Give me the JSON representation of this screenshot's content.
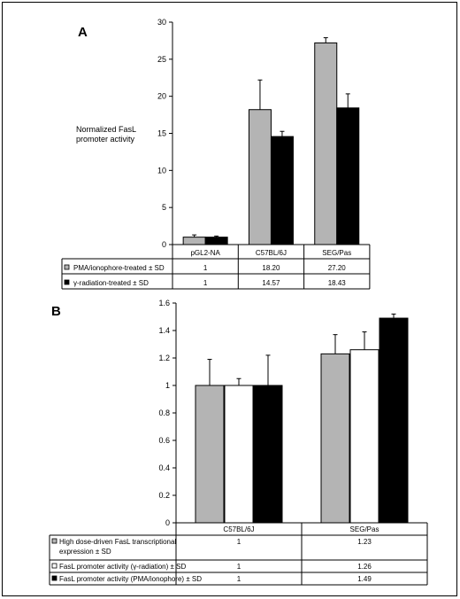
{
  "chart_data": [
    {
      "panel": "A",
      "type": "bar",
      "ylabel": [
        "Normalized FasL",
        "promoter activity"
      ],
      "categories": [
        "pGL2-NA",
        "C57BL/6J",
        "SEG/Pas"
      ],
      "ylim": [
        0,
        30
      ],
      "yticks": [
        0,
        5,
        10,
        15,
        20,
        25,
        30
      ],
      "series": [
        {
          "name": "PMA/ionophore-treated ± SD",
          "color": "#b4b4b4",
          "values": [
            1,
            18.2,
            27.2
          ],
          "errors": [
            0.3,
            4.0,
            0.7
          ],
          "labels": [
            "1",
            "18.20",
            "27.20"
          ]
        },
        {
          "name": "γ-radiation-treated ± SD",
          "color": "#000000",
          "values": [
            1,
            14.57,
            18.43
          ],
          "errors": [
            0.15,
            0.7,
            1.9
          ],
          "labels": [
            "1",
            "14.57",
            "18.43"
          ]
        }
      ]
    },
    {
      "panel": "B",
      "type": "bar",
      "categories": [
        "C57BL/6J",
        "SEG/Pas"
      ],
      "ylim": [
        0,
        1.6
      ],
      "yticks": [
        0,
        0.2,
        0.4,
        0.6,
        0.8,
        1,
        1.2,
        1.4,
        1.6
      ],
      "series": [
        {
          "name": [
            "High dose-driven FasL transcriptional",
            "expression ± SD"
          ],
          "color": "#b4b4b4",
          "values": [
            1,
            1.23
          ],
          "errors": [
            0.19,
            0.14
          ],
          "labels": [
            "1",
            "1.23"
          ]
        },
        {
          "name": "FasL promoter activity (γ-radiation) ± SD",
          "color": "#ffffff",
          "values": [
            1,
            1.26
          ],
          "errors": [
            0.05,
            0.13
          ],
          "labels": [
            "1",
            "1.26"
          ]
        },
        {
          "name": "FasL promoter activity (PMA/ionophore) ± SD",
          "color": "#000000",
          "values": [
            1,
            1.49
          ],
          "errors": [
            0.22,
            0.03
          ],
          "labels": [
            "1",
            "1.49"
          ]
        }
      ]
    }
  ]
}
